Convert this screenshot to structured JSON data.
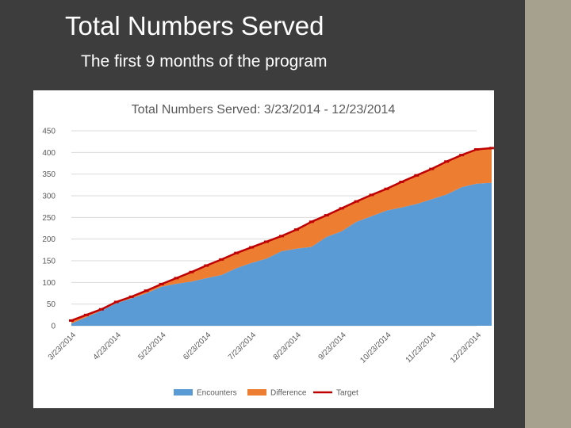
{
  "slide": {
    "title": "Total Numbers Served",
    "subtitle": "The first 9 months of the program"
  },
  "colors": {
    "encounters": "#5b9bd5",
    "difference": "#ed7d31",
    "target": "#c00000",
    "grid": "#d9d9d9",
    "text": "#595959"
  },
  "chart_data": {
    "type": "area",
    "title": "Total Numbers Served: 3/23/2014 - 12/23/2014",
    "xlabel": "",
    "ylabel": "",
    "ylim": [
      0,
      450
    ],
    "yticks": [
      0,
      50,
      100,
      150,
      200,
      250,
      300,
      350,
      400,
      450
    ],
    "categories": [
      "3/23/2014",
      "4/23/2014",
      "5/23/2014",
      "6/23/2014",
      "7/23/2014",
      "8/23/2014",
      "9/23/2014",
      "10/23/2014",
      "11/23/2014",
      "12/23/2014"
    ],
    "x": [
      0,
      0.333,
      0.667,
      1,
      1.333,
      1.667,
      2,
      2.333,
      2.667,
      3,
      3.333,
      3.667,
      4,
      4.333,
      4.667,
      5,
      5.333,
      5.667,
      6,
      6.333,
      6.667,
      7,
      7.333,
      7.667,
      8,
      8.333,
      8.667,
      9,
      9.333
    ],
    "series": [
      {
        "name": "Encounters",
        "type": "area",
        "stack": true,
        "values": [
          5,
          20,
          35,
          52,
          63,
          75,
          90,
          97,
          102,
          110,
          117,
          133,
          145,
          155,
          172,
          178,
          182,
          205,
          218,
          240,
          253,
          266,
          273,
          281,
          292,
          303,
          320,
          328,
          330
        ]
      },
      {
        "name": "Difference",
        "type": "area",
        "stack": true,
        "values": [
          7,
          5,
          3,
          3,
          4,
          6,
          6,
          13,
          22,
          29,
          36,
          35,
          36,
          39,
          35,
          44,
          58,
          50,
          53,
          47,
          49,
          50,
          59,
          66,
          70,
          76,
          74,
          79,
          80
        ]
      },
      {
        "name": "Target",
        "type": "line",
        "values": [
          12,
          25,
          38,
          55,
          67,
          81,
          96,
          110,
          124,
          139,
          153,
          168,
          181,
          194,
          207,
          222,
          240,
          255,
          271,
          287,
          302,
          316,
          332,
          347,
          362,
          379,
          394,
          407,
          410
        ]
      }
    ],
    "legend": [
      "Encounters",
      "Difference",
      "Target"
    ],
    "legend_position": "bottom",
    "grid": true
  }
}
